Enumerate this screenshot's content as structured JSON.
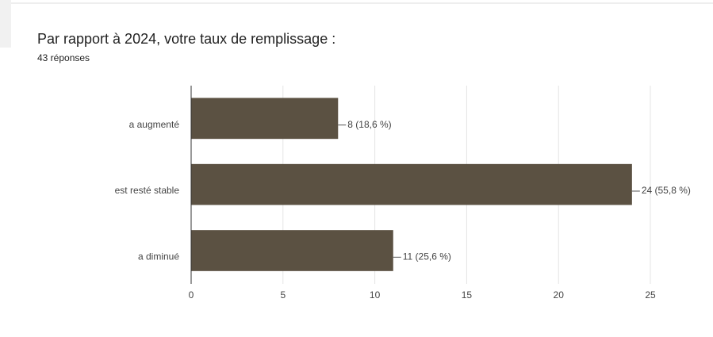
{
  "chart_data": {
    "type": "bar",
    "orientation": "horizontal",
    "title": "Par rapport à 2024, votre taux de remplissage :",
    "subtitle": "43 réponses",
    "categories": [
      "a augmenté",
      "est resté stable",
      "a diminué"
    ],
    "values": [
      8,
      24,
      11
    ],
    "value_labels": [
      "8 (18,6 %)",
      "24 (55,8 %)",
      "11 (25,6 %)"
    ],
    "color": "#5b5142",
    "xlim": [
      0,
      25
    ],
    "xticks": [
      0,
      5,
      10,
      15,
      20,
      25
    ],
    "grid": true
  }
}
